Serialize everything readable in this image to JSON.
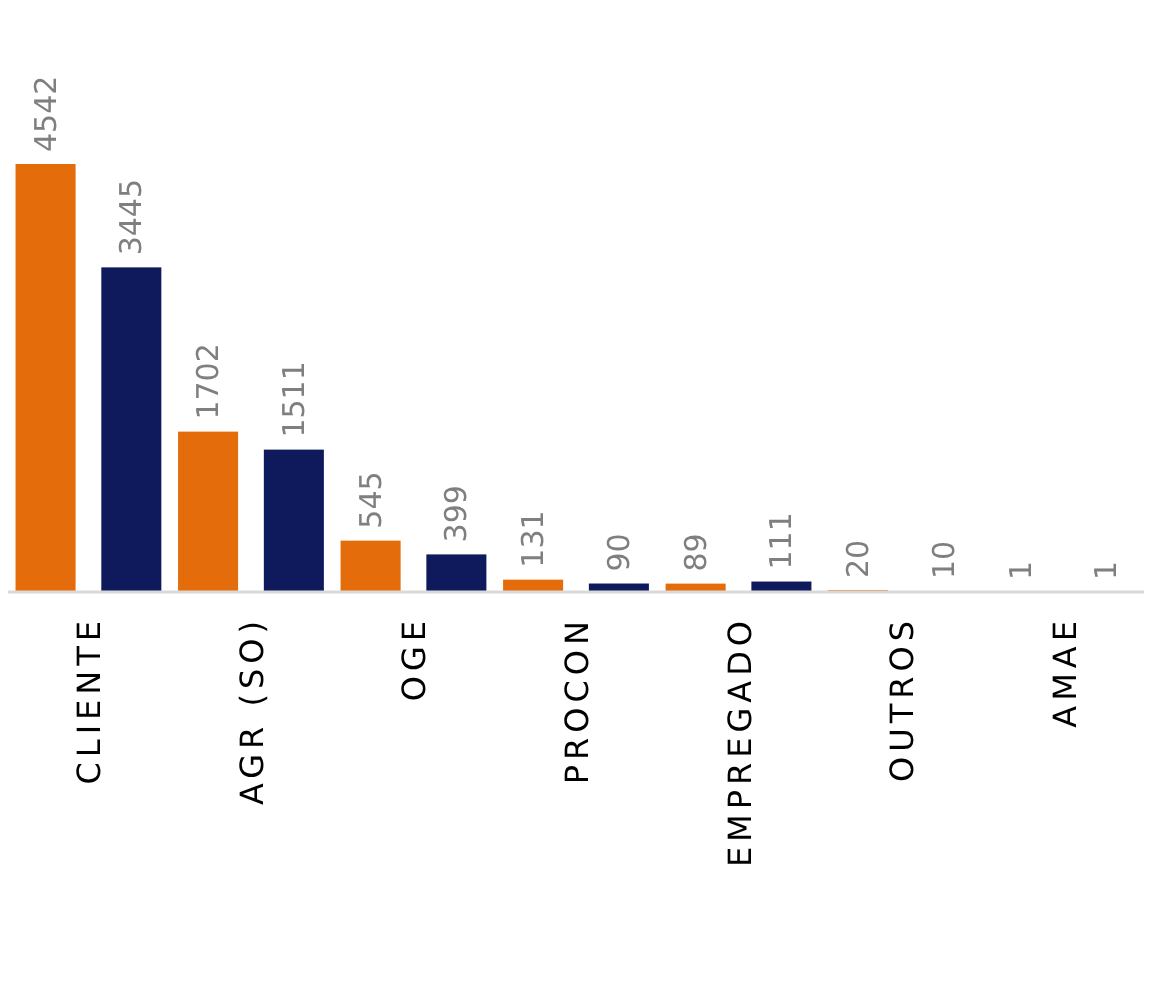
{
  "chart_data": {
    "type": "bar",
    "categories": [
      "CLIENTE",
      "AGR (SO)",
      "OGE",
      "PROCON",
      "EMPREGADO",
      "OUTROS",
      "AMAE"
    ],
    "series": [
      {
        "color": "#e46c0a",
        "values": [
          4542,
          1702,
          545,
          131,
          89,
          20,
          1
        ]
      },
      {
        "color": "#0e1a5c",
        "values": [
          3445,
          1511,
          399,
          90,
          111,
          10,
          1
        ]
      }
    ],
    "data_labels": true
  }
}
